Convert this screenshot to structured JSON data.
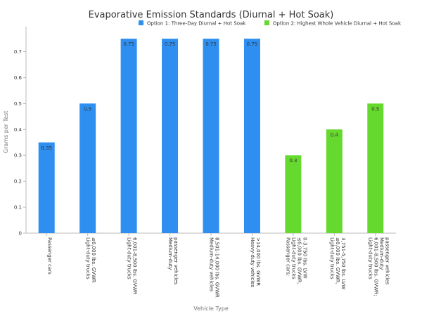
{
  "chart_data": {
    "type": "bar",
    "title": "Evaporative Emission Standards (Diurnal + Hot Soak)",
    "xlabel": "Vehicle Type",
    "ylabel": "Grams per Test",
    "ylim": [
      0,
      0.78
    ],
    "yticks": [
      0,
      0.1,
      0.2,
      0.3,
      0.4,
      0.5,
      0.6,
      0.7
    ],
    "grid": false,
    "legend_position": "top-right",
    "categories": [
      "Passenger cars",
      "Light-duty trucks ≤6,000 lbs. GVWR",
      "Light-duty trucks 6,001-8,500 lbs. GVWR",
      "Medium-duty passenger vehicles",
      "Medium-duty vehicles 8,501-14,000 lbs. GVWR",
      "Heavy-duty vehicles >14,000 lbs. GVWR",
      "Passenger cars; Light-duty trucks ≤6,000 lbs. GVWR, 0-3,750 lbs. LVW",
      "Light-duty trucks ≤6,000 lbs. GVWR, 3,751-5,750 lbs. LVW",
      "Light-duty trucks 6,001-8,500 lbs. GVWR; Medium-duty passenger vehicles"
    ],
    "category_lines": [
      [
        "Passenger cars"
      ],
      [
        "Light-duty trucks",
        "≤6,000 lbs. GVWR"
      ],
      [
        "Light-duty trucks",
        "6,001-8,500 lbs. GVWR"
      ],
      [
        "Medium-duty",
        "passenger vehicles"
      ],
      [
        "Medium-duty vehicles",
        "8,501-14,000 lbs. GVWR"
      ],
      [
        "Heavy-duty vehicles",
        ">14,000 lbs. GVWR"
      ],
      [
        "Passenger cars;",
        "Light-duty trucks",
        "≤6,000 lbs. GVWR,",
        "0-3,750 lbs. LVW"
      ],
      [
        "Light-duty trucks",
        "≤6,000 lbs. GVWR,",
        "3,751-5,750 lbs. LVW"
      ],
      [
        "Light-duty trucks",
        "6,001-8,500 lbs. GVWR;",
        "Medium-duty",
        "passenger vehicles"
      ]
    ],
    "series": [
      {
        "name": "Option 1: Three-Day Diurnal + Hot Soak",
        "color": "#2f8ff0",
        "values": [
          0.35,
          0.5,
          0.75,
          0.75,
          0.75,
          0.75,
          null,
          null,
          null
        ]
      },
      {
        "name": "Option 2: Highest Whole Vehicle Diurnal + Hot Soak",
        "color": "#66d92e",
        "values": [
          null,
          null,
          null,
          null,
          null,
          null,
          0.3,
          0.4,
          0.5
        ]
      }
    ],
    "data_labels": [
      "0.35",
      "0.5",
      "0.75",
      "0.75",
      "0.75",
      "0.75",
      "0.3",
      "0.4",
      "0.5"
    ]
  },
  "colors": {
    "axis": "#bbbbbb",
    "text": "#333333",
    "muted": "#777777"
  }
}
